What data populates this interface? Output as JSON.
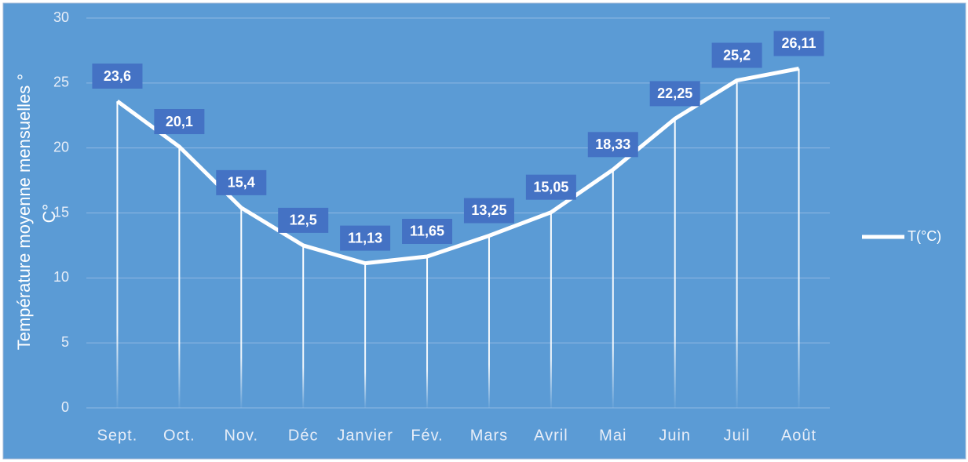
{
  "chart_data": {
    "type": "line",
    "ylabel": [
      "Température moyenne mensuelles °",
      "C°"
    ],
    "categories": [
      "Sept.",
      "Oct.",
      "Nov.",
      "Déc",
      "Janvier",
      "Fév.",
      "Mars",
      "Avril",
      "Mai",
      "Juin",
      "Juil",
      "Août"
    ],
    "series": [
      {
        "name": "T(°C)",
        "color": "#ffffff",
        "values": [
          23.6,
          20.1,
          15.4,
          12.5,
          11.13,
          11.65,
          13.25,
          15.05,
          18.33,
          22.25,
          25.2,
          26.11
        ],
        "value_labels": [
          "23,6",
          "20,1",
          "15,4",
          "12,5",
          "11,13",
          "11,65",
          "13,25",
          "15,05",
          "18,33",
          "22,25",
          "25,2",
          "26,11"
        ]
      }
    ],
    "ylim": [
      0,
      30
    ],
    "yticks": [
      0,
      5,
      10,
      15,
      20,
      25,
      30
    ],
    "grid": true,
    "legend": "right"
  }
}
